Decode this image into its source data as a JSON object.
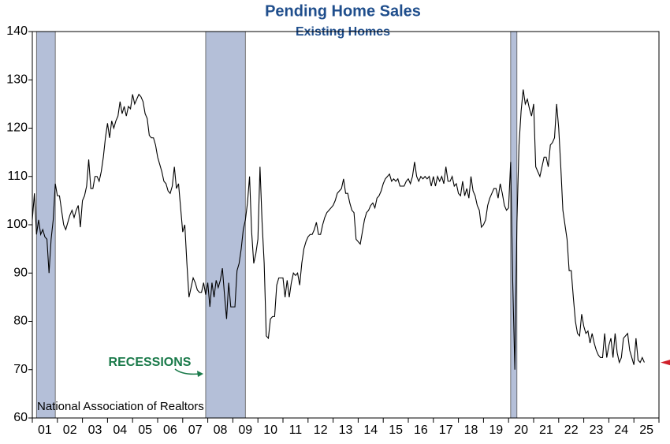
{
  "chart_data": {
    "type": "line",
    "title": "Pending Home Sales",
    "subtitle": "Existing Homes",
    "source": "National Association of Realtors",
    "annotation": "RECESSIONS",
    "color": "#000000",
    "recession_color": "#b4bfd8",
    "annotation_color": "#1a7a4a",
    "title_color": "#1f4e8c",
    "marker_color": "#d0202a",
    "ylim": [
      60,
      140
    ],
    "yticks": [
      60,
      70,
      80,
      90,
      100,
      110,
      120,
      130,
      140
    ],
    "recessions": [
      [
        2,
        10
      ],
      [
        83,
        101
      ],
      [
        229,
        231
      ]
    ],
    "categories": [
      "01",
      null,
      null,
      null,
      null,
      null,
      null,
      null,
      null,
      null,
      null,
      null,
      "02",
      null,
      null,
      null,
      null,
      null,
      null,
      null,
      null,
      null,
      null,
      null,
      "03",
      null,
      null,
      null,
      null,
      null,
      null,
      null,
      null,
      null,
      null,
      null,
      "04",
      null,
      null,
      null,
      null,
      null,
      null,
      null,
      null,
      null,
      null,
      null,
      "05",
      null,
      null,
      null,
      null,
      null,
      null,
      null,
      null,
      null,
      null,
      null,
      "06",
      null,
      null,
      null,
      null,
      null,
      null,
      null,
      null,
      null,
      null,
      null,
      "07",
      null,
      null,
      null,
      null,
      null,
      null,
      null,
      null,
      null,
      null,
      null,
      "08",
      null,
      null,
      null,
      null,
      null,
      null,
      null,
      null,
      null,
      null,
      null,
      "09",
      null,
      null,
      null,
      null,
      null,
      null,
      null,
      null,
      null,
      null,
      null,
      "10",
      null,
      null,
      null,
      null,
      null,
      null,
      null,
      null,
      null,
      null,
      null,
      "11",
      null,
      null,
      null,
      null,
      null,
      null,
      null,
      null,
      null,
      null,
      null,
      "12",
      null,
      null,
      null,
      null,
      null,
      null,
      null,
      null,
      null,
      null,
      null,
      "13",
      null,
      null,
      null,
      null,
      null,
      null,
      null,
      null,
      null,
      null,
      null,
      "14",
      null,
      null,
      null,
      null,
      null,
      null,
      null,
      null,
      null,
      null,
      null,
      "15",
      null,
      null,
      null,
      null,
      null,
      null,
      null,
      null,
      null,
      null,
      null,
      "16",
      null,
      null,
      null,
      null,
      null,
      null,
      null,
      null,
      null,
      null,
      null,
      "17",
      null,
      null,
      null,
      null,
      null,
      null,
      null,
      null,
      null,
      null,
      null,
      "18",
      null,
      null,
      null,
      null,
      null,
      null,
      null,
      null,
      null,
      null,
      null,
      "19",
      null,
      null,
      null,
      null,
      null,
      null,
      null,
      null,
      null,
      null,
      null,
      "20",
      null,
      null,
      null,
      null,
      null,
      null,
      null,
      null,
      null,
      null,
      null,
      "21",
      null,
      null,
      null,
      null,
      null,
      null,
      null,
      null,
      null,
      null,
      null,
      "22",
      null,
      null,
      null,
      null,
      null,
      null,
      null,
      null,
      null,
      null,
      null,
      "23",
      null,
      null,
      null,
      null,
      null,
      null,
      null,
      null,
      null,
      null,
      null,
      "24",
      null,
      null,
      null,
      null,
      null,
      null,
      null,
      null,
      null,
      null,
      null,
      "25",
      null,
      null,
      null,
      null,
      null
    ],
    "values": [
      101,
      106.5,
      98,
      101,
      98,
      99,
      97.5,
      97,
      90,
      97,
      101,
      108.5,
      106,
      106,
      103,
      100,
      99,
      100.5,
      102,
      103,
      101.5,
      103,
      104,
      99.5,
      105,
      106,
      108,
      113.5,
      107.5,
      107.5,
      110,
      110,
      109,
      111,
      114,
      118,
      121,
      118,
      121.5,
      120,
      121.5,
      122.5,
      125.5,
      123,
      124.5,
      122.5,
      124.5,
      124,
      127,
      125,
      126,
      127,
      126.5,
      125.5,
      123,
      122,
      118.5,
      118,
      118,
      116.5,
      114,
      112.5,
      111,
      109,
      108.5,
      107,
      106.5,
      108,
      112,
      107.5,
      108.5,
      103.5,
      98.5,
      100,
      92,
      85,
      87,
      89,
      88,
      86.5,
      86,
      86,
      88,
      85.5,
      88,
      83,
      88,
      85,
      88.5,
      87,
      88.5,
      91,
      85.5,
      80.5,
      88,
      83,
      83,
      83,
      90.5,
      92,
      95,
      99,
      101,
      104.5,
      110,
      98.5,
      92,
      94,
      97,
      112,
      100.5,
      92,
      77,
      76.5,
      80.5,
      81,
      81,
      87.5,
      89,
      89,
      89,
      85,
      88.5,
      85,
      88,
      90,
      89.5,
      90,
      87.5,
      92,
      95,
      96.5,
      97.5,
      98,
      98,
      99,
      100.5,
      98,
      98,
      100,
      101.5,
      102.5,
      103,
      103.5,
      104,
      105,
      106.5,
      107,
      107.5,
      109.5,
      106.5,
      106.5,
      104.5,
      103,
      102.5,
      97,
      96.5,
      96,
      98.5,
      101,
      102.5,
      103,
      104,
      104.5,
      103.5,
      105.5,
      106,
      107,
      108.5,
      109.5,
      110,
      110.5,
      109,
      109.5,
      109,
      109.5,
      108,
      108,
      108,
      109,
      109.5,
      108.5,
      110,
      113,
      110,
      109,
      110,
      109.5,
      110,
      109.5,
      110,
      108,
      110,
      108,
      110,
      109,
      110,
      108.5,
      112,
      109,
      109,
      110,
      108,
      108.5,
      106.5,
      106,
      109,
      106,
      107.5,
      105.5,
      110,
      107,
      106,
      104,
      103,
      99.5,
      100,
      101,
      104,
      105.5,
      106.5,
      107.5,
      107.5,
      105.5,
      108.5,
      106.5,
      104,
      103,
      103.5,
      113,
      88,
      70,
      100.5,
      116.5,
      123.5,
      128,
      125,
      126,
      124,
      122.5,
      125,
      112,
      111,
      110,
      112,
      114,
      114,
      112,
      116.5,
      117,
      118,
      125,
      120,
      112,
      103,
      100,
      97,
      90.5,
      90.5,
      85,
      80,
      77.5,
      77,
      81.5,
      79,
      77.5,
      78,
      75.5,
      77.5,
      75.5,
      74,
      73,
      72.5,
      72.5,
      77.5,
      72.5,
      75,
      76.5,
      72.5,
      77.5,
      73.5,
      71.5,
      72.5,
      76.5,
      77,
      77.5,
      74,
      72.5,
      71,
      76.5,
      72,
      71.5,
      72.5,
      71.5
    ]
  }
}
